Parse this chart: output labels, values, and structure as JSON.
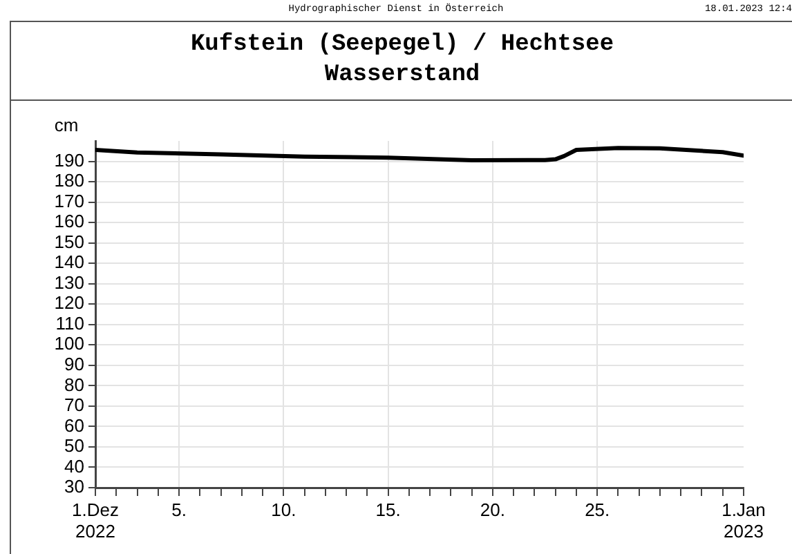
{
  "chart_data": {
    "type": "line",
    "title": "Kufstein (Seepegel) / Hechtsee",
    "subtitle": "Wasserstand",
    "ylabel": "cm",
    "annotations": [
      "Hydrographischer Dienst in Österreich",
      "18.01.2023 12:4"
    ],
    "series": [
      {
        "color": "#000000",
        "x": [
          "2022-12-01",
          "2022-12-03",
          "2022-12-07",
          "2022-12-11",
          "2022-12-15",
          "2022-12-19",
          "2022-12-22T12:00",
          "2022-12-23",
          "2022-12-23T10:00",
          "2022-12-24",
          "2022-12-26",
          "2022-12-28",
          "2022-12-31",
          "2023-01-01"
        ],
        "values": [
          195.6,
          194.3,
          193.4,
          192.3,
          191.8,
          190.5,
          190.6,
          191,
          192.6,
          195.6,
          196.5,
          196.4,
          194.5,
          192.8
        ]
      }
    ],
    "xlim": [
      "2022-12-01",
      "2023-01-01"
    ],
    "xticks": [
      {
        "value": "2022-12-01",
        "label": "1.Dez\n2022"
      },
      {
        "value": "2022-12-02",
        "label": null
      },
      {
        "value": "2022-12-03",
        "label": null
      },
      {
        "value": "2022-12-04",
        "label": null
      },
      {
        "value": "2022-12-05",
        "label": "5."
      },
      {
        "value": "2022-12-06",
        "label": null
      },
      {
        "value": "2022-12-07",
        "label": null
      },
      {
        "value": "2022-12-08",
        "label": null
      },
      {
        "value": "2022-12-09",
        "label": null
      },
      {
        "value": "2022-12-10",
        "label": "10."
      },
      {
        "value": "2022-12-11",
        "label": null
      },
      {
        "value": "2022-12-12",
        "label": null
      },
      {
        "value": "2022-12-13",
        "label": null
      },
      {
        "value": "2022-12-14",
        "label": null
      },
      {
        "value": "2022-12-15",
        "label": "15."
      },
      {
        "value": "2022-12-16",
        "label": null
      },
      {
        "value": "2022-12-17",
        "label": null
      },
      {
        "value": "2022-12-18",
        "label": null
      },
      {
        "value": "2022-12-19",
        "label": null
      },
      {
        "value": "2022-12-20",
        "label": "20."
      },
      {
        "value": "2022-12-21",
        "label": null
      },
      {
        "value": "2022-12-22",
        "label": null
      },
      {
        "value": "2022-12-23",
        "label": null
      },
      {
        "value": "2022-12-24",
        "label": null
      },
      {
        "value": "2022-12-25",
        "label": "25."
      },
      {
        "value": "2022-12-26",
        "label": null
      },
      {
        "value": "2022-12-27",
        "label": null
      },
      {
        "value": "2022-12-28",
        "label": null
      },
      {
        "value": "2022-12-29",
        "label": null
      },
      {
        "value": "2022-12-30",
        "label": null
      },
      {
        "value": "2022-12-31",
        "label": null
      },
      {
        "value": "2023-01-01",
        "label": "1.Jan\n2023"
      }
    ],
    "ylim": [
      30,
      200
    ],
    "yticks": [
      30,
      40,
      50,
      60,
      70,
      80,
      90,
      100,
      110,
      120,
      130,
      140,
      150,
      160,
      170,
      180,
      190
    ],
    "grid": true,
    "legend": false,
    "line_style": "solid"
  }
}
